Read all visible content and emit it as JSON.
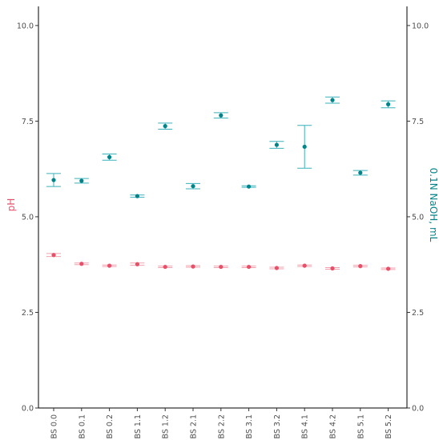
{
  "chart_data": {
    "type": "scatter",
    "title": "",
    "xlabel": "",
    "ylabel_left": "pH",
    "ylabel_right": "0.1N NaOH, mL",
    "ylim": [
      0,
      10.5
    ],
    "yticks": [
      "0.0",
      "2.5",
      "5.0",
      "7.5",
      "10.0"
    ],
    "ytick_values": [
      0,
      2.5,
      5,
      7.5,
      10
    ],
    "grid": false,
    "legend": "none",
    "categories": [
      "BS 0.0",
      "BS 0.1",
      "BS 0.2",
      "BS 1.1",
      "BS 1.2",
      "BS 2.1",
      "BS 2.2",
      "BS 3.1",
      "BS 3.2",
      "BS 4.1",
      "BS 4.2",
      "BS 5.1",
      "BS 5.2"
    ],
    "series": [
      {
        "axis": "left",
        "color": "#e8506a",
        "errcolor": "#f2a0ad",
        "values": [
          4.0,
          3.77,
          3.72,
          3.76,
          3.69,
          3.7,
          3.69,
          3.69,
          3.66,
          3.72,
          3.65,
          3.71,
          3.64
        ],
        "err_low": [
          3.96,
          3.75,
          3.7,
          3.73,
          3.67,
          3.68,
          3.67,
          3.67,
          3.64,
          3.7,
          3.63,
          3.69,
          3.62
        ],
        "err_high": [
          4.04,
          3.79,
          3.74,
          3.79,
          3.71,
          3.72,
          3.71,
          3.71,
          3.68,
          3.74,
          3.67,
          3.73,
          3.66
        ]
      },
      {
        "axis": "right",
        "color": "#00848a",
        "errcolor": "#3ab0ba",
        "values": [
          5.96,
          5.94,
          6.56,
          5.54,
          7.37,
          5.8,
          7.65,
          5.79,
          6.88,
          6.83,
          8.05,
          6.15,
          7.94
        ],
        "err_low": [
          5.79,
          5.88,
          6.48,
          5.51,
          7.29,
          5.73,
          7.58,
          5.77,
          6.79,
          6.27,
          7.97,
          6.09,
          7.85
        ],
        "err_high": [
          6.13,
          6.0,
          6.64,
          5.57,
          7.45,
          5.87,
          7.72,
          5.81,
          6.97,
          7.39,
          8.13,
          6.21,
          8.03
        ]
      }
    ],
    "colors": {
      "left_axis_title": "#e8506a",
      "right_axis_title": "#00848a",
      "axis_line": "#000000",
      "tick_text": "#4d4d4d"
    }
  }
}
